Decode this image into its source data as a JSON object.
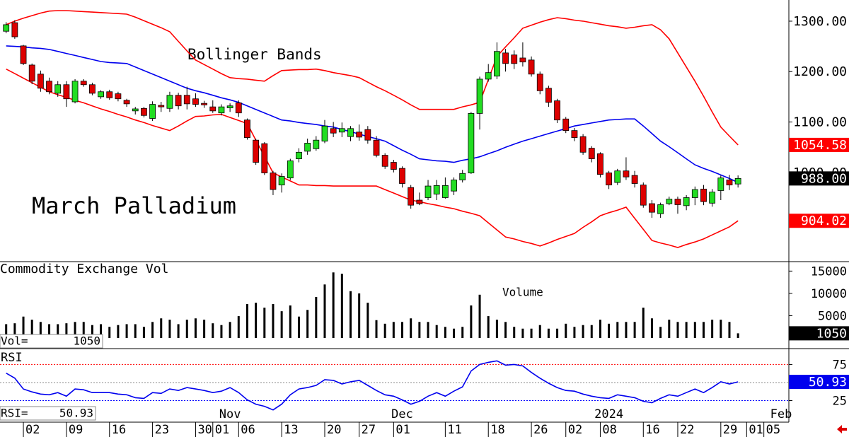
{
  "chart_data": [
    {
      "type": "candlestick",
      "title": "March Palladium",
      "annotation": "Bollinger Bands",
      "up_color": "#22dd22",
      "down_color": "#dd0000",
      "open": [
        1280,
        1297,
        1251,
        1213,
        1195,
        1181,
        1157,
        1174,
        1140,
        1181,
        1174,
        1150,
        1160,
        1156,
        1143,
        1122,
        1127,
        1107,
        1133,
        1127,
        1153,
        1153,
        1146,
        1137,
        1130,
        1118,
        1128,
        1138,
        1104,
        1064,
        1057,
        999,
        975,
        989,
        1027,
        1042,
        1047,
        1062,
        1087,
        1080,
        1071,
        1080,
        1085,
        1064,
        1034,
        1020,
        1008,
        970,
        945,
        950,
        957,
        950,
        963,
        985,
        999,
        1117,
        1185,
        1191,
        1237,
        1233,
        1227,
        1223,
        1195,
        1167,
        1142,
        1106,
        1083,
        1071,
        1048,
        1037,
        999,
        980,
        1003,
        994,
        975,
        938,
        918,
        938,
        947,
        934,
        950,
        967,
        939,
        964,
        985,
        977,
        null,
        null,
        null
      ],
      "high": [
        1298,
        1302,
        1253,
        1216,
        1202,
        1188,
        1181,
        1181,
        1185,
        1185,
        1178,
        1163,
        1164,
        1160,
        1146,
        1130,
        1130,
        1141,
        1140,
        1160,
        1158,
        1170,
        1157,
        1142,
        1143,
        1135,
        1137,
        1143,
        1107,
        1067,
        1060,
        1003,
        998,
        1027,
        1048,
        1067,
        1072,
        1104,
        1100,
        1099,
        1092,
        1095,
        1092,
        1072,
        1038,
        1025,
        1012,
        975,
        960,
        985,
        985,
        990,
        990,
        1005,
        1120,
        1190,
        1215,
        1258,
        1245,
        1242,
        1258,
        1230,
        1200,
        1172,
        1146,
        1110,
        1088,
        1076,
        1052,
        1040,
        1003,
        1007,
        1030,
        1003,
        980,
        945,
        940,
        952,
        952,
        955,
        972,
        975,
        967,
        994,
        995,
        994,
        null,
        null,
        null
      ],
      "low": [
        1276,
        1265,
        1213,
        1175,
        1160,
        1155,
        1150,
        1130,
        1137,
        1170,
        1153,
        1146,
        1144,
        1141,
        1130,
        1115,
        1109,
        1102,
        1120,
        1120,
        1125,
        1125,
        1130,
        1128,
        1118,
        1113,
        1120,
        1110,
        1065,
        1015,
        995,
        955,
        960,
        985,
        1020,
        1035,
        1043,
        1058,
        1070,
        1070,
        1062,
        1063,
        1057,
        1030,
        1007,
        1000,
        970,
        928,
        935,
        945,
        945,
        948,
        955,
        980,
        997,
        1085,
        1180,
        1185,
        1200,
        1205,
        1210,
        1190,
        1155,
        1130,
        1098,
        1078,
        1062,
        1035,
        1020,
        990,
        967,
        975,
        985,
        970,
        930,
        910,
        910,
        935,
        918,
        925,
        935,
        935,
        932,
        945,
        965,
        970,
        null,
        null,
        null
      ],
      "close": [
        1293,
        1269,
        1216,
        1181,
        1167,
        1160,
        1174,
        1146,
        1181,
        1174,
        1157,
        1160,
        1148,
        1146,
        1136,
        1126,
        1113,
        1135,
        1130,
        1153,
        1132,
        1136,
        1135,
        1134,
        1122,
        1130,
        1132,
        1118,
        1069,
        1020,
        999,
        966,
        992,
        1023,
        1040,
        1058,
        1064,
        1092,
        1078,
        1087,
        1087,
        1070,
        1064,
        1034,
        1012,
        1006,
        978,
        935,
        938,
        973,
        974,
        974,
        985,
        998,
        1117,
        1185,
        1198,
        1240,
        1216,
        1216,
        1219,
        1195,
        1162,
        1139,
        1104,
        1083,
        1069,
        1040,
        1027,
        996,
        975,
        1003,
        991,
        978,
        935,
        921,
        936,
        947,
        936,
        950,
        966,
        942,
        961,
        989,
        975,
        988,
        null,
        null,
        null
      ],
      "close_label": "988.00",
      "close_label_color": "#000000",
      "bands": [
        {
          "color": "#ff0000",
          "label_color": "#ff0000",
          "last_label": "1054.58",
          "values": [
            1293,
            1300,
            1306,
            1311,
            1316,
            1320,
            1321,
            1321,
            1320,
            1319,
            1318,
            1317,
            1316,
            1315,
            1314,
            1308,
            1301,
            1294,
            1287,
            1279,
            1260,
            1241,
            1223,
            1214,
            1205,
            1196,
            1188,
            1186,
            1185,
            1183,
            1181,
            1192,
            1202,
            1203,
            1204,
            1204,
            1205,
            1202,
            1198,
            1195,
            1192,
            1188,
            1179,
            1170,
            1162,
            1153,
            1144,
            1134,
            1125,
            1125,
            1125,
            1125,
            1125,
            1130,
            1134,
            1139,
            1184,
            1230,
            1249,
            1267,
            1286,
            1292,
            1298,
            1303,
            1307,
            1305,
            1302,
            1300,
            1297,
            1294,
            1291,
            1289,
            1286,
            1288,
            1291,
            1293,
            1283,
            1265,
            1237,
            1209,
            1181,
            1151,
            1120,
            1090,
            1072,
            1054.58,
            null,
            null,
            null
          ]
        },
        {
          "color": "#0000ee",
          "values": [
            1251,
            1250,
            1249,
            1247,
            1246,
            1244,
            1240,
            1236,
            1232,
            1228,
            1224,
            1220,
            1218,
            1217,
            1216,
            1209,
            1202,
            1195,
            1188,
            1181,
            1174,
            1167,
            1162,
            1158,
            1153,
            1148,
            1144,
            1139,
            1132,
            1125,
            1118,
            1111,
            1104,
            1102,
            1099,
            1097,
            1095,
            1092,
            1090,
            1085,
            1081,
            1076,
            1071,
            1067,
            1062,
            1053,
            1044,
            1036,
            1027,
            1025,
            1023,
            1022,
            1020,
            1024,
            1027,
            1031,
            1037,
            1043,
            1050,
            1056,
            1062,
            1067,
            1072,
            1077,
            1082,
            1087,
            1092,
            1095,
            1098,
            1101,
            1104,
            1105,
            1106,
            1106,
            1092,
            1077,
            1062,
            1051,
            1039,
            1027,
            1015,
            1008,
            1002,
            995,
            988,
            980,
            null,
            null,
            null
          ]
        },
        {
          "color": "#ff0000",
          "label_color": "#ff0000",
          "last_label": "904.02",
          "values": [
            1205,
            1196,
            1187,
            1178,
            1169,
            1160,
            1154,
            1149,
            1143,
            1138,
            1132,
            1126,
            1121,
            1115,
            1110,
            1104,
            1099,
            1093,
            1088,
            1083,
            1092,
            1102,
            1111,
            1112,
            1114,
            1115,
            1109,
            1103,
            1097,
            1064,
            1032,
            999,
            991,
            983,
            975,
            975,
            974,
            974,
            973,
            973,
            973,
            973,
            973,
            973,
            966,
            959,
            952,
            945,
            942,
            938,
            935,
            931,
            928,
            923,
            919,
            914,
            900,
            886,
            872,
            868,
            863,
            859,
            854,
            860,
            867,
            873,
            879,
            891,
            902,
            914,
            920,
            925,
            931,
            909,
            887,
            865,
            860,
            856,
            851,
            857,
            862,
            868,
            876,
            884,
            892,
            904.02,
            null,
            null,
            null
          ]
        }
      ],
      "ylim": [
        823,
        1342
      ],
      "yticks": [
        {
          "value": 1000,
          "label": "1000.00"
        },
        {
          "value": 1100,
          "label": "1100.00"
        },
        {
          "value": 1200,
          "label": "1200.00"
        },
        {
          "value": 1300,
          "label": "1300.00"
        }
      ]
    },
    {
      "type": "bar",
      "title": "Commodity Exchange Vol",
      "annotation": "Volume",
      "readout_label": "Vol=",
      "color": "#000000",
      "last_label_color": "#000000",
      "values": [
        3100,
        3300,
        4800,
        4100,
        3600,
        3100,
        3100,
        3300,
        3600,
        3600,
        2900,
        3100,
        2500,
        2900,
        3100,
        3100,
        2500,
        3600,
        4400,
        4100,
        3100,
        4100,
        4400,
        4100,
        3300,
        2900,
        3600,
        4900,
        7600,
        7900,
        6800,
        7600,
        6000,
        7300,
        4800,
        6300,
        9200,
        12000,
        14700,
        14400,
        10500,
        10000,
        7900,
        4000,
        3200,
        3600,
        3600,
        4400,
        3600,
        3600,
        2900,
        2500,
        2100,
        2500,
        7300,
        9700,
        4900,
        4100,
        3600,
        2500,
        2100,
        2100,
        2900,
        2100,
        2100,
        3200,
        2500,
        2900,
        2900,
        4100,
        3200,
        3600,
        3600,
        3600,
        6800,
        4400,
        2500,
        4100,
        3600,
        3600,
        3600,
        3600,
        4100,
        4100,
        3600,
        1050,
        null,
        null,
        null
      ],
      "ylim": [
        0,
        16800
      ],
      "yticks": [
        5000,
        10000,
        15000
      ]
    },
    {
      "type": "line",
      "title": "RSI",
      "readout_label": "RSI=",
      "color": "#0000ee",
      "last_label_color": "#0000ee",
      "values": [
        63,
        56,
        41,
        37,
        34,
        33,
        36,
        31,
        41,
        40,
        36,
        36,
        36,
        34,
        33,
        29,
        28,
        36,
        35,
        41,
        39,
        43,
        41,
        39,
        36,
        38,
        43,
        36,
        26,
        20,
        17,
        12,
        20,
        33,
        41,
        43,
        46,
        54,
        53,
        48,
        51,
        53,
        46,
        39,
        33,
        31,
        26,
        20,
        24,
        31,
        36,
        31,
        38,
        44,
        66,
        75,
        78,
        80,
        74,
        75,
        73,
        64,
        56,
        49,
        43,
        39,
        38,
        34,
        31,
        29,
        28,
        33,
        31,
        29,
        24,
        22,
        28,
        33,
        31,
        36,
        41,
        36,
        43,
        51,
        48,
        50.93,
        null,
        null,
        null
      ],
      "ylim": [
        0,
        95
      ],
      "yticks": [
        25,
        50,
        75
      ],
      "grid": true,
      "grid_colors": [
        "#0000ff",
        "#888888",
        "#ff0000"
      ],
      "categories": [
        null,
        null,
        "02",
        null,
        null,
        null,
        null,
        "09",
        null,
        null,
        null,
        null,
        "16",
        null,
        null,
        null,
        null,
        "23",
        null,
        null,
        null,
        null,
        "30",
        null,
        "01",
        null,
        null,
        "06",
        null,
        null,
        null,
        null,
        "13",
        null,
        null,
        null,
        null,
        "20",
        null,
        null,
        null,
        "27",
        null,
        null,
        null,
        "01",
        null,
        null,
        null,
        null,
        null,
        "11",
        null,
        null,
        null,
        null,
        "18",
        null,
        null,
        null,
        null,
        "26",
        null,
        null,
        null,
        "02",
        null,
        null,
        null,
        "08",
        null,
        null,
        null,
        null,
        "16",
        null,
        null,
        null,
        "22",
        null,
        null,
        null,
        null,
        "29",
        null,
        null,
        "01",
        null,
        "05"
      ],
      "months": [
        null,
        null,
        null,
        null,
        null,
        null,
        null,
        null,
        null,
        null,
        null,
        null,
        null,
        null,
        null,
        null,
        null,
        null,
        null,
        null,
        null,
        null,
        null,
        null,
        null,
        null,
        "Nov",
        null,
        null,
        null,
        null,
        null,
        null,
        null,
        null,
        null,
        null,
        null,
        null,
        null,
        null,
        null,
        null,
        null,
        null,
        null,
        "Dec",
        null,
        null,
        null,
        null,
        null,
        null,
        null,
        null,
        null,
        null,
        null,
        null,
        null,
        null,
        null,
        null,
        null,
        null,
        null,
        null,
        null,
        null,
        null,
        "2024",
        null,
        null,
        null,
        null,
        null,
        null,
        null,
        null,
        null,
        null,
        null,
        null,
        null,
        null,
        null,
        null,
        null,
        null,
        null,
        "Feb",
        null
      ]
    }
  ]
}
